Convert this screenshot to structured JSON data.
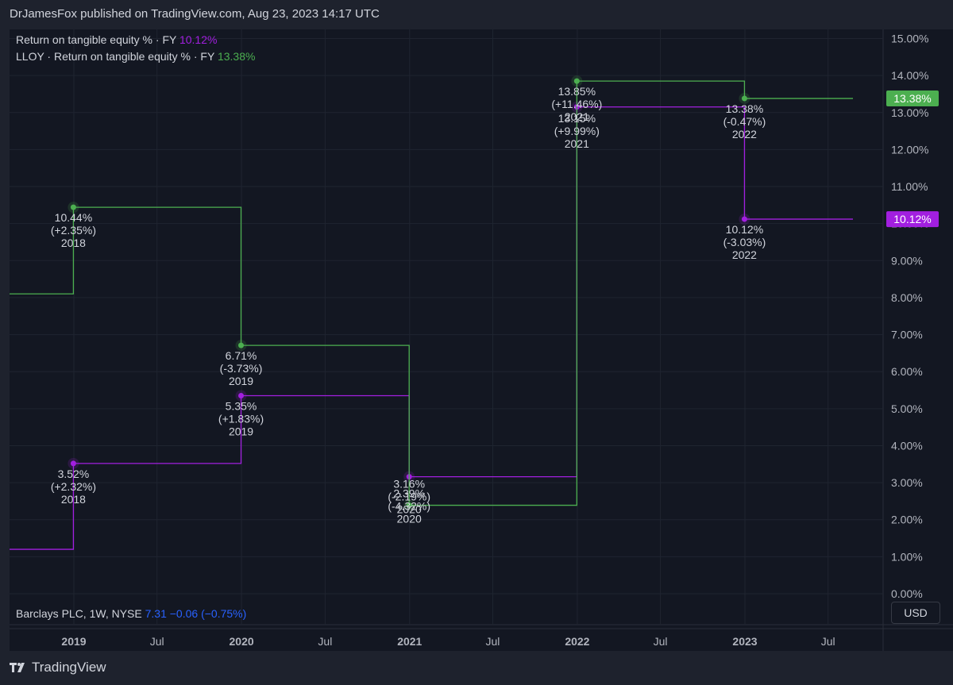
{
  "header": {
    "publisher_line": "DrJamesFox published on TradingView.com, Aug 23, 2023 14:17 UTC"
  },
  "legend": [
    {
      "label": "Return on tangible equity % · FY",
      "value": "10.12%",
      "color": "#a21fe0"
    },
    {
      "label": "LLOY · Return on tangible equity % · FY",
      "value": "13.38%",
      "color": "#4caf50"
    }
  ],
  "symbol_bar": {
    "label": "Barclays PLC, 1W, NYSE",
    "price": "7.31",
    "change": "−0.06 (−0.75%)",
    "color": "#2962ff"
  },
  "currency_button": "USD",
  "footer": {
    "brand": "TradingView",
    "logo_icon": "tradingview-logo-icon"
  },
  "chart_data": {
    "type": "line",
    "step": true,
    "y_unit": "%",
    "ylim": [
      0,
      15
    ],
    "y_ticks": [
      "0.00%",
      "1.00%",
      "2.00%",
      "3.00%",
      "4.00%",
      "5.00%",
      "6.00%",
      "7.00%",
      "8.00%",
      "9.00%",
      "10.00%",
      "11.00%",
      "12.00%",
      "13.00%",
      "14.00%",
      "15.00%"
    ],
    "x_ticks": [
      {
        "label": "2019",
        "date": "2019-01-01",
        "bold": true
      },
      {
        "label": "Jul",
        "date": "2019-07-01",
        "bold": false
      },
      {
        "label": "2020",
        "date": "2020-01-01",
        "bold": true
      },
      {
        "label": "Jul",
        "date": "2020-07-01",
        "bold": false
      },
      {
        "label": "2021",
        "date": "2021-01-01",
        "bold": true
      },
      {
        "label": "Jul",
        "date": "2021-07-01",
        "bold": false
      },
      {
        "label": "2022",
        "date": "2022-01-01",
        "bold": true
      },
      {
        "label": "Jul",
        "date": "2022-07-01",
        "bold": false
      },
      {
        "label": "2023",
        "date": "2023-01-01",
        "bold": true
      },
      {
        "label": "Jul",
        "date": "2023-07-01",
        "bold": false
      }
    ],
    "grid": true,
    "series": [
      {
        "name": "Return on tangible equity % · FY",
        "color": "#a21fe0",
        "last_value_label": "10.12%",
        "leading_value": 1.2,
        "points": [
          {
            "date": "2018-12-31",
            "value": 3.52,
            "change": "(+2.32%)",
            "year": "2018"
          },
          {
            "date": "2019-12-31",
            "value": 5.35,
            "change": "(+1.83%)",
            "year": "2019"
          },
          {
            "date": "2020-12-31",
            "value": 3.16,
            "change": "(-2.19%)",
            "year": "2020"
          },
          {
            "date": "2021-12-31",
            "value": 13.15,
            "change": "(+9.99%)",
            "year": "2021"
          },
          {
            "date": "2022-12-31",
            "value": 10.12,
            "change": "(-3.03%)",
            "year": "2022"
          }
        ]
      },
      {
        "name": "LLOY · Return on tangible equity % · FY",
        "color": "#4caf50",
        "last_value_label": "13.38%",
        "leading_value": 8.1,
        "points": [
          {
            "date": "2018-12-31",
            "value": 10.44,
            "change": "(+2.35%)",
            "year": "2018"
          },
          {
            "date": "2019-12-31",
            "value": 6.71,
            "change": "(-3.73%)",
            "year": "2019"
          },
          {
            "date": "2020-12-31",
            "value": 2.39,
            "change": "(-4.32%)",
            "year": "2020"
          },
          {
            "date": "2021-12-31",
            "value": 13.85,
            "change": "(+11.46%)",
            "year": "2021"
          },
          {
            "date": "2022-12-31",
            "value": 13.38,
            "change": "(-0.47%)",
            "year": "2022"
          }
        ]
      }
    ]
  }
}
